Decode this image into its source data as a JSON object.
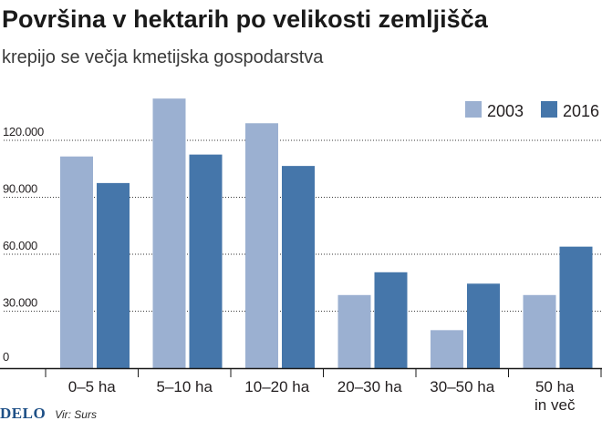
{
  "title": "Površina v hektarih po velikosti zemljišča",
  "subtitle": "krepijo se večja kmetijska gospodarstva",
  "footer": {
    "logo": "DELO",
    "source": "Vir: Surs"
  },
  "colors": {
    "series_2003": "#9bb0d1",
    "series_2016": "#4576aa",
    "grid": "#3a3a3a",
    "text": "#231f20"
  },
  "chart_data": {
    "type": "bar",
    "categories": [
      "0–5 ha",
      "5–10 ha",
      "10–20 ha",
      "20–30 ha",
      "30–50 ha",
      "50 ha\nin več"
    ],
    "series": [
      {
        "name": "2003",
        "values": [
          111500,
          142000,
          129000,
          38500,
          20000,
          38500
        ]
      },
      {
        "name": "2016",
        "values": [
          97500,
          112500,
          106500,
          50500,
          44500,
          64000
        ]
      }
    ],
    "yticks": [
      0,
      30000,
      60000,
      90000,
      120000
    ],
    "ytick_labels": [
      "0",
      "30.000",
      "60.000",
      "90.000",
      "120.000"
    ],
    "ylim": [
      0,
      150000
    ],
    "grid": true,
    "legend_position": "top-right"
  }
}
